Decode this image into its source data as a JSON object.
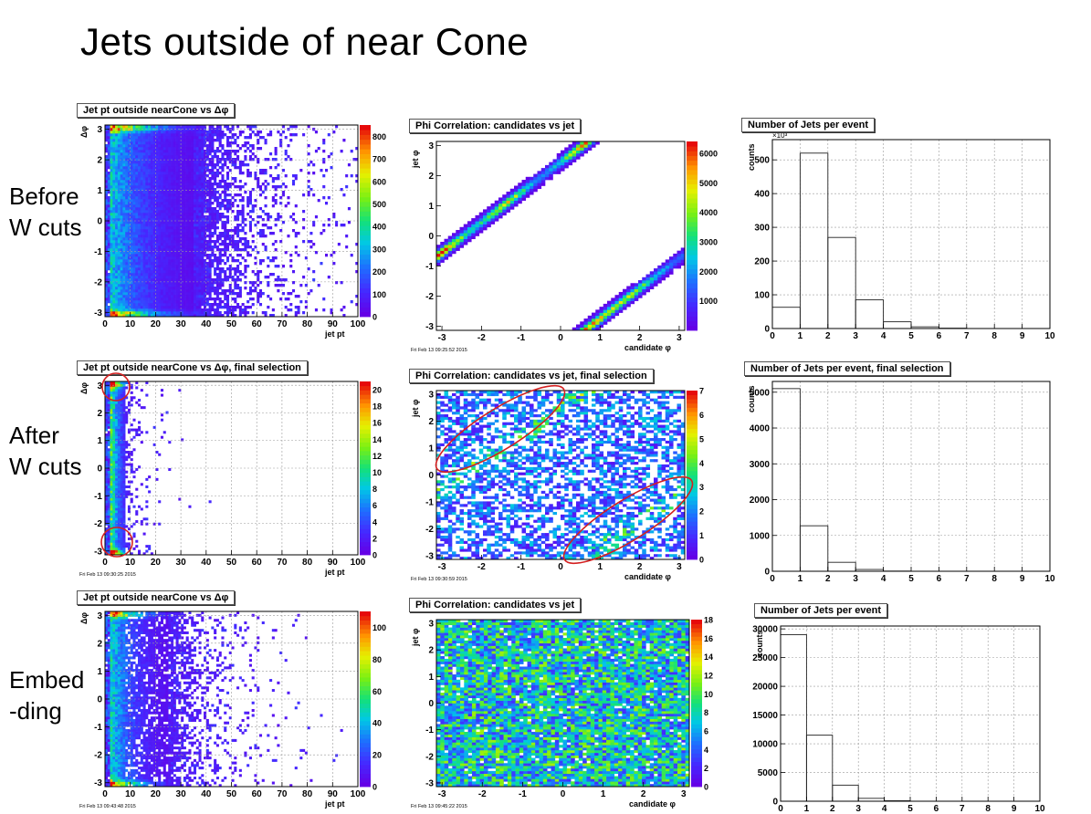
{
  "slide": {
    "title": "Jets outside of near Cone",
    "rows": [
      {
        "line1": "Before",
        "line2": "W cuts"
      },
      {
        "line1": "After",
        "line2": "W cuts"
      },
      {
        "line1": "Embed",
        "line2": "-ding"
      }
    ]
  },
  "chart_data": [
    {
      "type": "heatmap",
      "title": "Jet pt outside nearCone vs Δφ",
      "xlabel": "jet pt",
      "ylabel": "Δφ",
      "xlim": [
        0,
        100
      ],
      "ylim": [
        -3.14,
        3.14
      ],
      "xticks": [
        "0",
        "10",
        "20",
        "30",
        "40",
        "50",
        "60",
        "70",
        "80",
        "90",
        "100"
      ],
      "yticks": [
        "-3",
        "-2",
        "-1",
        "0",
        "1",
        "2",
        "3"
      ],
      "zticks": [
        "0",
        "100",
        "200",
        "300",
        "400",
        "500",
        "600",
        "700",
        "800"
      ],
      "zmax": 850,
      "pattern": "jetpt",
      "spread": 1.0,
      "density": 1.0,
      "grid": true,
      "timestamp": ""
    },
    {
      "type": "heatmap",
      "title": "Phi Correlation: candidates vs jet",
      "xlabel": "candidate φ",
      "ylabel": "jet φ",
      "xlim": [
        -3.14,
        3.14
      ],
      "ylim": [
        -3.14,
        3.14
      ],
      "xticks": [
        "-3",
        "-2",
        "-1",
        "0",
        "1",
        "2",
        "3"
      ],
      "yticks": [
        "-3",
        "-2",
        "-1",
        "0",
        "1",
        "2",
        "3"
      ],
      "zticks": [
        "1000",
        "2000",
        "3000",
        "4000",
        "5000",
        "6000"
      ],
      "zmax": 6400,
      "pattern": "phicorr",
      "density": 1.0,
      "grid": false,
      "timestamp": "Fri Feb 13 09:25:52 2015"
    },
    {
      "type": "bar",
      "title": "Number of Jets per event",
      "xlabel": "",
      "ylabel": "counts",
      "categories": [
        "0",
        "1",
        "2",
        "3",
        "4",
        "5",
        "6",
        "7",
        "8",
        "9"
      ],
      "values": [
        63,
        520,
        270,
        85,
        20,
        5,
        1,
        0,
        0,
        0
      ],
      "xlim": [
        0,
        10
      ],
      "ylim": [
        0,
        560
      ],
      "xticks": [
        "0",
        "1",
        "2",
        "3",
        "4",
        "5",
        "6",
        "7",
        "8",
        "9",
        "10"
      ],
      "yticks": [
        "0",
        "100",
        "200",
        "300",
        "400",
        "500"
      ],
      "multiplier": "×10³",
      "grid": true
    },
    {
      "type": "heatmap",
      "title": "Jet pt outside nearCone vs Δφ, final selection",
      "xlabel": "jet pt",
      "ylabel": "Δφ",
      "xlim": [
        0,
        100
      ],
      "ylim": [
        -3.14,
        3.14
      ],
      "xticks": [
        "0",
        "10",
        "20",
        "30",
        "40",
        "50",
        "60",
        "70",
        "80",
        "90",
        "100"
      ],
      "yticks": [
        "-3",
        "-2",
        "-1",
        "0",
        "1",
        "2",
        "3"
      ],
      "zticks": [
        "0",
        "2",
        "4",
        "6",
        "8",
        "10",
        "12",
        "14",
        "16",
        "18",
        "20"
      ],
      "zmax": 21,
      "pattern": "jetpt",
      "spread": 0.25,
      "density": 0.35,
      "grid": true,
      "timestamp": "Fri Feb 13 09:30:25 2015"
    },
    {
      "type": "heatmap",
      "title": "Phi Correlation: candidates vs jet, final selection",
      "xlabel": "candidate φ",
      "ylabel": "jet φ",
      "xlim": [
        -3.14,
        3.14
      ],
      "ylim": [
        -3.14,
        3.14
      ],
      "xticks": [
        "-3",
        "-2",
        "-1",
        "0",
        "1",
        "2",
        "3"
      ],
      "yticks": [
        "-3",
        "-2",
        "-1",
        "0",
        "1",
        "2",
        "3"
      ],
      "zticks": [
        "0",
        "1",
        "2",
        "3",
        "4",
        "5",
        "6",
        "7"
      ],
      "zmax": 7,
      "pattern": "sparse",
      "density": 0.55,
      "grid": false,
      "timestamp": "Fri Feb 13 09:30:59 2015"
    },
    {
      "type": "bar",
      "title": "Number of Jets per event, final selection",
      "xlabel": "",
      "ylabel": "counts",
      "categories": [
        "0",
        "1",
        "2",
        "3",
        "4",
        "5",
        "6",
        "7",
        "8",
        "9"
      ],
      "values": [
        5100,
        1270,
        250,
        50,
        5,
        0,
        0,
        0,
        0,
        0
      ],
      "xlim": [
        0,
        10
      ],
      "ylim": [
        0,
        5300
      ],
      "xticks": [
        "0",
        "1",
        "2",
        "3",
        "4",
        "5",
        "6",
        "7",
        "8",
        "9",
        "10"
      ],
      "yticks": [
        "0",
        "1000",
        "2000",
        "3000",
        "4000",
        "5000"
      ],
      "multiplier": "",
      "grid": true
    },
    {
      "type": "heatmap",
      "title": "Jet pt outside nearCone vs Δφ",
      "xlabel": "jet pt",
      "ylabel": "Δφ",
      "xlim": [
        0,
        100
      ],
      "ylim": [
        -3.14,
        3.14
      ],
      "xticks": [
        "0",
        "10",
        "20",
        "30",
        "40",
        "50",
        "60",
        "70",
        "80",
        "90",
        "100"
      ],
      "yticks": [
        "-3",
        "-2",
        "-1",
        "0",
        "1",
        "2",
        "3"
      ],
      "zticks": [
        "0",
        "20",
        "40",
        "60",
        "80",
        "100"
      ],
      "zmax": 110,
      "pattern": "jetpt",
      "spread": 0.7,
      "density": 0.8,
      "grid": true,
      "timestamp": "Fri Feb 13 09:43:48 2015"
    },
    {
      "type": "heatmap",
      "title": "Phi Correlation: candidates vs jet",
      "xlabel": "candidate φ",
      "ylabel": "jet φ",
      "xlim": [
        -3.14,
        3.14
      ],
      "ylim": [
        -3.14,
        3.14
      ],
      "xticks": [
        "-3",
        "-2",
        "-1",
        "0",
        "1",
        "2",
        "3"
      ],
      "yticks": [
        "-3",
        "-2",
        "-1",
        "0",
        "1",
        "2",
        "3"
      ],
      "zticks": [
        "0",
        "2",
        "4",
        "6",
        "8",
        "10",
        "12",
        "14",
        "16",
        "18"
      ],
      "zmax": 18,
      "pattern": "uniform",
      "density": 0.95,
      "grid": false,
      "timestamp": "Fri Feb 13 09:45:22 2015"
    },
    {
      "type": "bar",
      "title": "Number of Jets per event",
      "xlabel": "",
      "ylabel": "counts",
      "categories": [
        "0",
        "1",
        "2",
        "3",
        "4",
        "5",
        "6",
        "7",
        "8",
        "9"
      ],
      "values": [
        29000,
        11500,
        2800,
        500,
        80,
        0,
        0,
        0,
        0,
        0
      ],
      "xlim": [
        0,
        10
      ],
      "ylim": [
        0,
        30500
      ],
      "xticks": [
        "0",
        "1",
        "2",
        "3",
        "4",
        "5",
        "6",
        "7",
        "8",
        "9",
        "10"
      ],
      "yticks": [
        "0",
        "5000",
        "10000",
        "15000",
        "20000",
        "25000",
        "30000"
      ],
      "multiplier": "",
      "grid": true
    }
  ]
}
